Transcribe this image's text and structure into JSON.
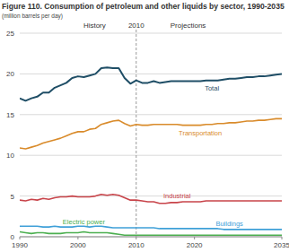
{
  "chart_data": {
    "type": "line",
    "title": "Figure 110. Consumption of petroleum and other liquids by sector, 1990-2035",
    "subtitle": "(million barrels per day)",
    "annotations": [
      "History",
      "Projections"
    ],
    "divider": 2010,
    "x": [
      1990,
      1991,
      1992,
      1993,
      1994,
      1995,
      1996,
      1997,
      1998,
      1999,
      2000,
      2001,
      2002,
      2003,
      2004,
      2005,
      2006,
      2007,
      2008,
      2009,
      2010,
      2011,
      2012,
      2013,
      2014,
      2015,
      2016,
      2017,
      2018,
      2019,
      2020,
      2021,
      2022,
      2023,
      2024,
      2025,
      2026,
      2027,
      2028,
      2029,
      2030,
      2031,
      2032,
      2033,
      2034,
      2035
    ],
    "xlim": [
      1990,
      2035
    ],
    "xticks": [
      1990,
      2000,
      2010,
      2020,
      2035
    ],
    "ylim": [
      0,
      25
    ],
    "yticks": [
      0,
      5,
      10,
      15,
      20,
      25
    ],
    "grid": true,
    "series": [
      {
        "name": "Total",
        "color": "#1f4e66",
        "values": [
          17.0,
          16.7,
          17.0,
          17.2,
          17.7,
          17.7,
          18.3,
          18.6,
          18.9,
          19.5,
          19.7,
          19.6,
          19.8,
          20.0,
          20.7,
          20.8,
          20.7,
          20.7,
          19.5,
          18.8,
          19.2,
          18.9,
          18.9,
          19.1,
          18.9,
          19.0,
          19.1,
          19.1,
          19.1,
          19.1,
          19.1,
          19.1,
          19.2,
          19.2,
          19.2,
          19.3,
          19.4,
          19.4,
          19.5,
          19.6,
          19.6,
          19.7,
          19.7,
          19.8,
          19.9,
          20.0
        ]
      },
      {
        "name": "Transportation",
        "color": "#d98b2b",
        "values": [
          10.9,
          10.8,
          11.0,
          11.2,
          11.5,
          11.7,
          11.9,
          12.1,
          12.4,
          12.7,
          12.9,
          12.9,
          13.2,
          13.3,
          13.8,
          14.0,
          14.2,
          14.3,
          13.9,
          13.6,
          13.8,
          13.7,
          13.7,
          13.8,
          13.8,
          13.8,
          13.8,
          13.8,
          13.7,
          13.7,
          13.7,
          13.7,
          13.8,
          13.8,
          13.9,
          13.9,
          14.0,
          14.0,
          14.1,
          14.2,
          14.2,
          14.3,
          14.3,
          14.4,
          14.5,
          14.5
        ]
      },
      {
        "name": "Industrial",
        "color": "#c8444a",
        "values": [
          4.5,
          4.4,
          4.6,
          4.5,
          4.7,
          4.6,
          4.8,
          4.9,
          4.9,
          5.0,
          4.9,
          4.9,
          4.9,
          5.0,
          5.2,
          5.1,
          5.2,
          5.1,
          4.8,
          4.5,
          4.5,
          4.4,
          4.3,
          4.3,
          4.1,
          4.1,
          4.2,
          4.2,
          4.3,
          4.3,
          4.3,
          4.3,
          4.4,
          4.4,
          4.4,
          4.4,
          4.4,
          4.4,
          4.4,
          4.4,
          4.4,
          4.4,
          4.4,
          4.4,
          4.4,
          4.4
        ]
      },
      {
        "name": "Buildings",
        "color": "#3fa0d8",
        "values": [
          1.3,
          1.3,
          1.3,
          1.3,
          1.2,
          1.2,
          1.3,
          1.2,
          1.2,
          1.2,
          1.3,
          1.3,
          1.2,
          1.3,
          1.3,
          1.2,
          1.1,
          1.1,
          1.1,
          1.1,
          1.1,
          1.1,
          1.1,
          1.1,
          1.0,
          1.0,
          1.0,
          1.0,
          1.0,
          1.0,
          1.0,
          1.0,
          1.0,
          1.0,
          1.0,
          0.9,
          0.9,
          0.9,
          0.9,
          0.9,
          0.9,
          0.9,
          0.9,
          0.9,
          0.9,
          0.9
        ]
      },
      {
        "name": "Electric power",
        "color": "#4caf50",
        "values": [
          0.6,
          0.5,
          0.4,
          0.5,
          0.5,
          0.4,
          0.4,
          0.4,
          0.5,
          0.5,
          0.5,
          0.6,
          0.5,
          0.5,
          0.5,
          0.5,
          0.4,
          0.3,
          0.2,
          0.2,
          0.2,
          0.2,
          0.2,
          0.2,
          0.2,
          0.2,
          0.2,
          0.2,
          0.2,
          0.2,
          0.2,
          0.2,
          0.2,
          0.2,
          0.2,
          0.2,
          0.2,
          0.2,
          0.2,
          0.2,
          0.2,
          0.2,
          0.2,
          0.2,
          0.2,
          0.2
        ]
      }
    ]
  }
}
